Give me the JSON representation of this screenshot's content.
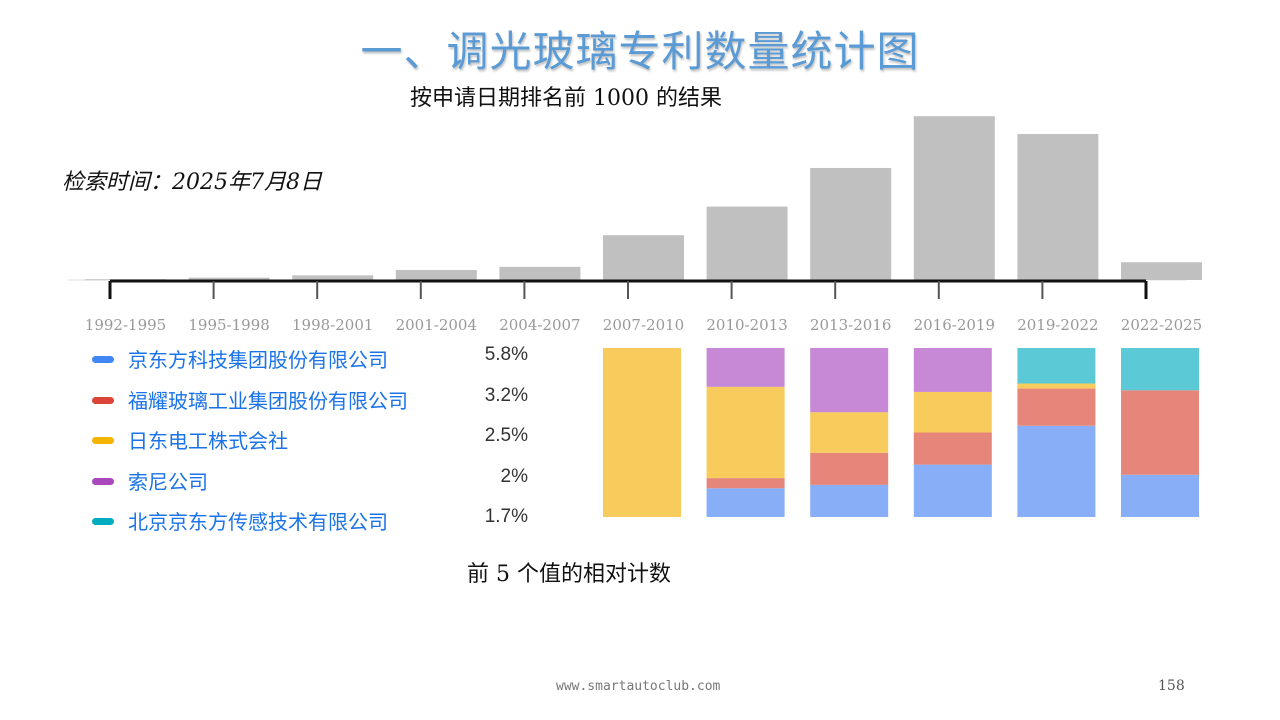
{
  "page": {
    "title": "一、调光玻璃专利数量统计图",
    "subtitle": "按申请日期排名前 1000 的结果",
    "search_date": "检索时间：2025年7月8日",
    "bottom_caption": "前 5 个值的相对计数",
    "footer_url": "www.smartautoclub.com",
    "page_number": "158"
  },
  "chart_data": [
    {
      "type": "bar",
      "categories": [
        "1992-1995",
        "1995-1998",
        "1998-2001",
        "2001-2004",
        "2004-2007",
        "2007-2010",
        "2010-2013",
        "2013-2016",
        "2016-2019",
        "2019-2022",
        "2022-2025"
      ],
      "values": [
        1,
        3,
        6,
        13,
        17,
        58,
        95,
        145,
        212,
        189,
        23
      ],
      "ylim": [
        0,
        220
      ],
      "grid": false,
      "colors": {
        "bar": "#c0c0c0",
        "axis": "#111111",
        "tick_label": "#999999"
      }
    },
    {
      "type": "bar",
      "stacked": true,
      "normalized": true,
      "categories": [
        "2007-2010",
        "2010-2013",
        "2013-2016",
        "2016-2019",
        "2019-2022",
        "2022-2025"
      ],
      "series": [
        {
          "name": "京东方科技集团股份有限公司",
          "color": "#87aef7",
          "values": [
            0,
            0.17,
            0.19,
            0.31,
            0.54,
            0.25
          ]
        },
        {
          "name": "福耀玻璃工业集团股份有限公司",
          "color": "#e6867a",
          "values": [
            0,
            0.06,
            0.19,
            0.19,
            0.22,
            0.5
          ]
        },
        {
          "name": "日东电工株式会社",
          "color": "#f8cc5c",
          "values": [
            1.0,
            0.54,
            0.24,
            0.24,
            0.03,
            0
          ]
        },
        {
          "name": "索尼公司",
          "color": "#c788d6",
          "values": [
            0,
            0.23,
            0.38,
            0.26,
            0,
            0
          ]
        },
        {
          "name": "北京京东方传感技术有限公司",
          "color": "#5ccad6",
          "values": [
            0,
            0,
            0,
            0,
            0.21,
            0.25
          ]
        }
      ]
    }
  ],
  "legend": {
    "items": [
      {
        "label": "京东方科技集团股份有限公司",
        "value": "5.8%",
        "color": "#4285f4"
      },
      {
        "label": "福耀玻璃工业集团股份有限公司",
        "value": "3.2%",
        "color": "#db4437"
      },
      {
        "label": "日东电工株式会社",
        "value": "2.5%",
        "color": "#f4b400"
      },
      {
        "label": "索尼公司",
        "value": "2%",
        "color": "#ab47bc"
      },
      {
        "label": "北京京东方传感技术有限公司",
        "value": "1.7%",
        "color": "#00acc1"
      }
    ]
  }
}
